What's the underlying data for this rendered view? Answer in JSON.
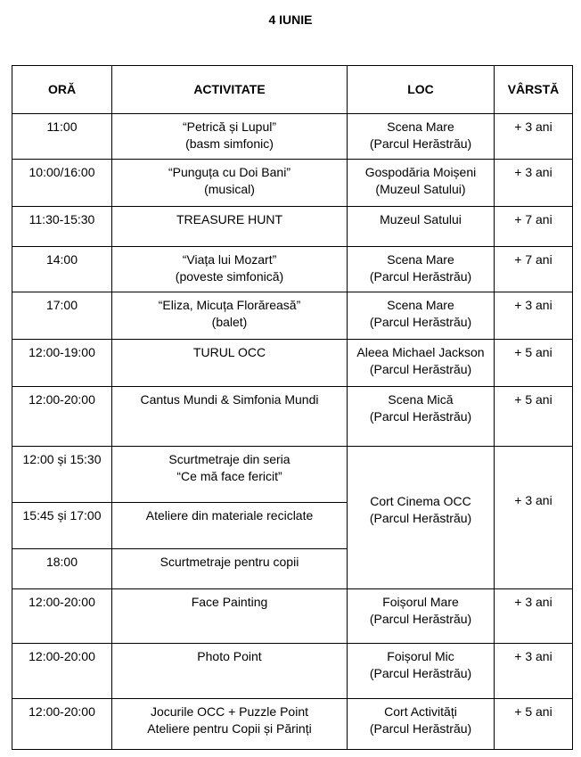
{
  "title": "4 IUNIE",
  "headers": [
    "ORĂ",
    "ACTIVITATE",
    "LOC",
    "VÂRSTĂ"
  ],
  "rows": [
    {
      "time": "11:00",
      "activity": [
        "“Petrică și Lupul”",
        "(basm simfonic)"
      ],
      "place": [
        "Scena Mare",
        "(Parcul Herăstrău)"
      ],
      "age": "+ 3 ani"
    },
    {
      "time": "10:00/16:00",
      "activity": [
        "“Punguța cu Doi Bani”",
        "(musical)"
      ],
      "place": [
        "Gospodăria Moișeni",
        "(Muzeul Satului)"
      ],
      "age": "+ 3 ani"
    },
    {
      "time": "11:30-15:30",
      "activity": [
        "TREASURE HUNT",
        ""
      ],
      "place": [
        "Muzeul Satului",
        ""
      ],
      "age": "+ 7 ani"
    },
    {
      "time": "14:00",
      "activity": [
        "“Viața lui Mozart”",
        "(poveste simfonică)"
      ],
      "place": [
        "Scena Mare",
        "(Parcul Herăstrău)"
      ],
      "age": "+ 7 ani"
    },
    {
      "time": "17:00",
      "activity": [
        "“Eliza, Micuța Florăreasă”",
        "(balet)"
      ],
      "place": [
        "Scena Mare",
        "(Parcul Herăstrău)"
      ],
      "age": "+ 3 ani"
    },
    {
      "time": "12:00-19:00",
      "activity": [
        "TURUL OCC",
        ""
      ],
      "place": [
        "Aleea Michael Jackson",
        "(Parcul Herăstrău)"
      ],
      "age": "+ 5 ani"
    },
    {
      "time": "12:00-20:00",
      "activity": [
        "Cantus Mundi & Simfonia Mundi",
        ""
      ],
      "place": [
        "Scena Mică",
        "(Parcul Herăstrău)"
      ],
      "age": "+ 5 ani"
    }
  ],
  "cinema_group": {
    "place": [
      "Cort Cinema OCC",
      "(Parcul Herăstrău)"
    ],
    "age": "+ 3 ani",
    "items": [
      {
        "time": "12:00 și 15:30",
        "activity": [
          "Scurtmetraje din seria",
          "“Ce mă face fericit”"
        ]
      },
      {
        "time": "15:45 și 17:00",
        "activity": [
          "Ateliere din materiale reciclate",
          ""
        ]
      },
      {
        "time": "18:00",
        "activity": [
          "Scurtmetraje pentru copii",
          ""
        ]
      }
    ]
  },
  "rows_after": [
    {
      "time": "12:00-20:00",
      "activity": [
        "Face Painting",
        ""
      ],
      "place": [
        "Foișorul Mare",
        "(Parcul Herăstrău)"
      ],
      "age": "+ 3 ani"
    },
    {
      "time": "12:00-20:00",
      "activity": [
        "Photo Point",
        ""
      ],
      "place": [
        "Foișorul Mic",
        "(Parcul Herăstrău)"
      ],
      "age": "+ 3 ani"
    },
    {
      "time": "12:00-20:00",
      "activity": [
        "Jocurile OCC + Puzzle Point",
        "Ateliere pentru Copii și Părinți"
      ],
      "place": [
        "Cort Activități",
        "(Parcul Herăstrău)"
      ],
      "age": "+ 5 ani"
    }
  ]
}
